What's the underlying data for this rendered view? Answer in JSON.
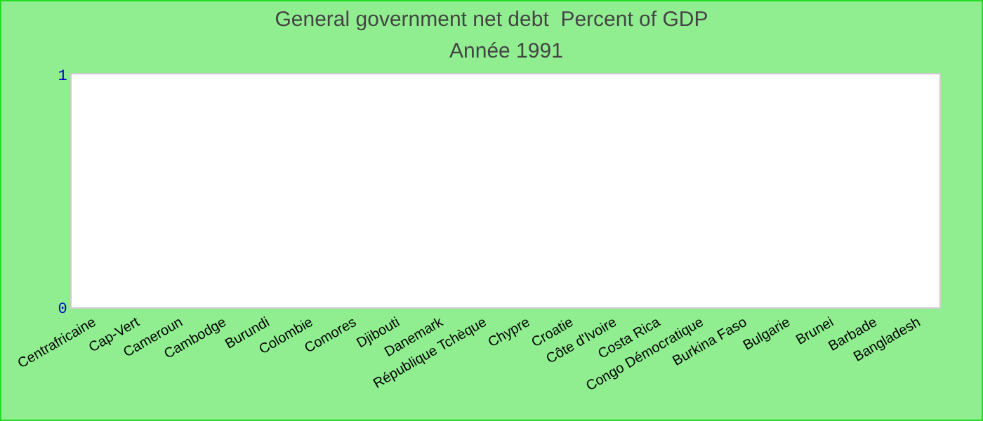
{
  "chart_data": {
    "type": "bar",
    "title": "General government net debt  Percent of GDP",
    "subtitle": "Année 1991",
    "categories": [
      "Centrafricaine",
      "Cap-Vert",
      "Cameroun",
      "Cambodge",
      "Burundi",
      "Colombie",
      "Comores",
      "Djibouti",
      "Danemark",
      "République Tchèque",
      "Chypre",
      "Croatie",
      "Côte d'Ivoire",
      "Costa Rica",
      "Congo Démocratique",
      "Burkina Faso",
      "Bulgarie",
      "Brunei",
      "Barbade",
      "Bangladesh"
    ],
    "values": [
      null,
      null,
      null,
      null,
      null,
      null,
      null,
      null,
      null,
      null,
      null,
      null,
      null,
      null,
      null,
      null,
      null,
      null,
      null,
      null
    ],
    "ylim": [
      0,
      1
    ],
    "yticks": [
      0,
      1
    ],
    "grid": false
  }
}
